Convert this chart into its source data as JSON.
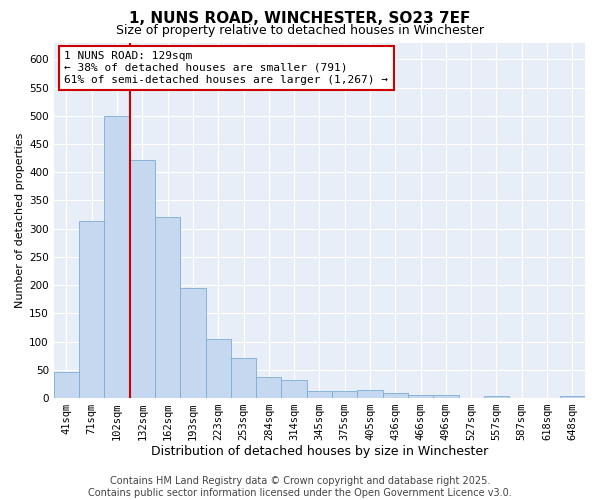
{
  "title": "1, NUNS ROAD, WINCHESTER, SO23 7EF",
  "subtitle": "Size of property relative to detached houses in Winchester",
  "xlabel": "Distribution of detached houses by size in Winchester",
  "ylabel": "Number of detached properties",
  "categories": [
    "41sqm",
    "71sqm",
    "102sqm",
    "132sqm",
    "162sqm",
    "193sqm",
    "223sqm",
    "253sqm",
    "284sqm",
    "314sqm",
    "345sqm",
    "375sqm",
    "405sqm",
    "436sqm",
    "466sqm",
    "496sqm",
    "527sqm",
    "557sqm",
    "587sqm",
    "618sqm",
    "648sqm"
  ],
  "values": [
    46,
    314,
    500,
    422,
    320,
    195,
    105,
    70,
    38,
    32,
    13,
    12,
    14,
    9,
    6,
    5,
    0,
    4,
    0,
    0,
    4
  ],
  "bar_color": "#c5d8f0",
  "bar_edge_color": "#7aadd4",
  "background_color": "#e8eef7",
  "grid_color": "#ffffff",
  "property_line_color": "#cc0000",
  "annotation_box_edge_color": "#cc0000",
  "property_label": "1 NUNS ROAD: 129sqm",
  "annotation_line1": "← 38% of detached houses are smaller (791)",
  "annotation_line2": "61% of semi-detached houses are larger (1,267) →",
  "ylim": [
    0,
    630
  ],
  "yticks": [
    0,
    50,
    100,
    150,
    200,
    250,
    300,
    350,
    400,
    450,
    500,
    550,
    600
  ],
  "footer_line1": "Contains HM Land Registry data © Crown copyright and database right 2025.",
  "footer_line2": "Contains public sector information licensed under the Open Government Licence v3.0.",
  "title_fontsize": 11,
  "subtitle_fontsize": 9,
  "xlabel_fontsize": 9,
  "ylabel_fontsize": 8,
  "tick_fontsize": 7.5,
  "footer_fontsize": 7,
  "annotation_fontsize": 8
}
